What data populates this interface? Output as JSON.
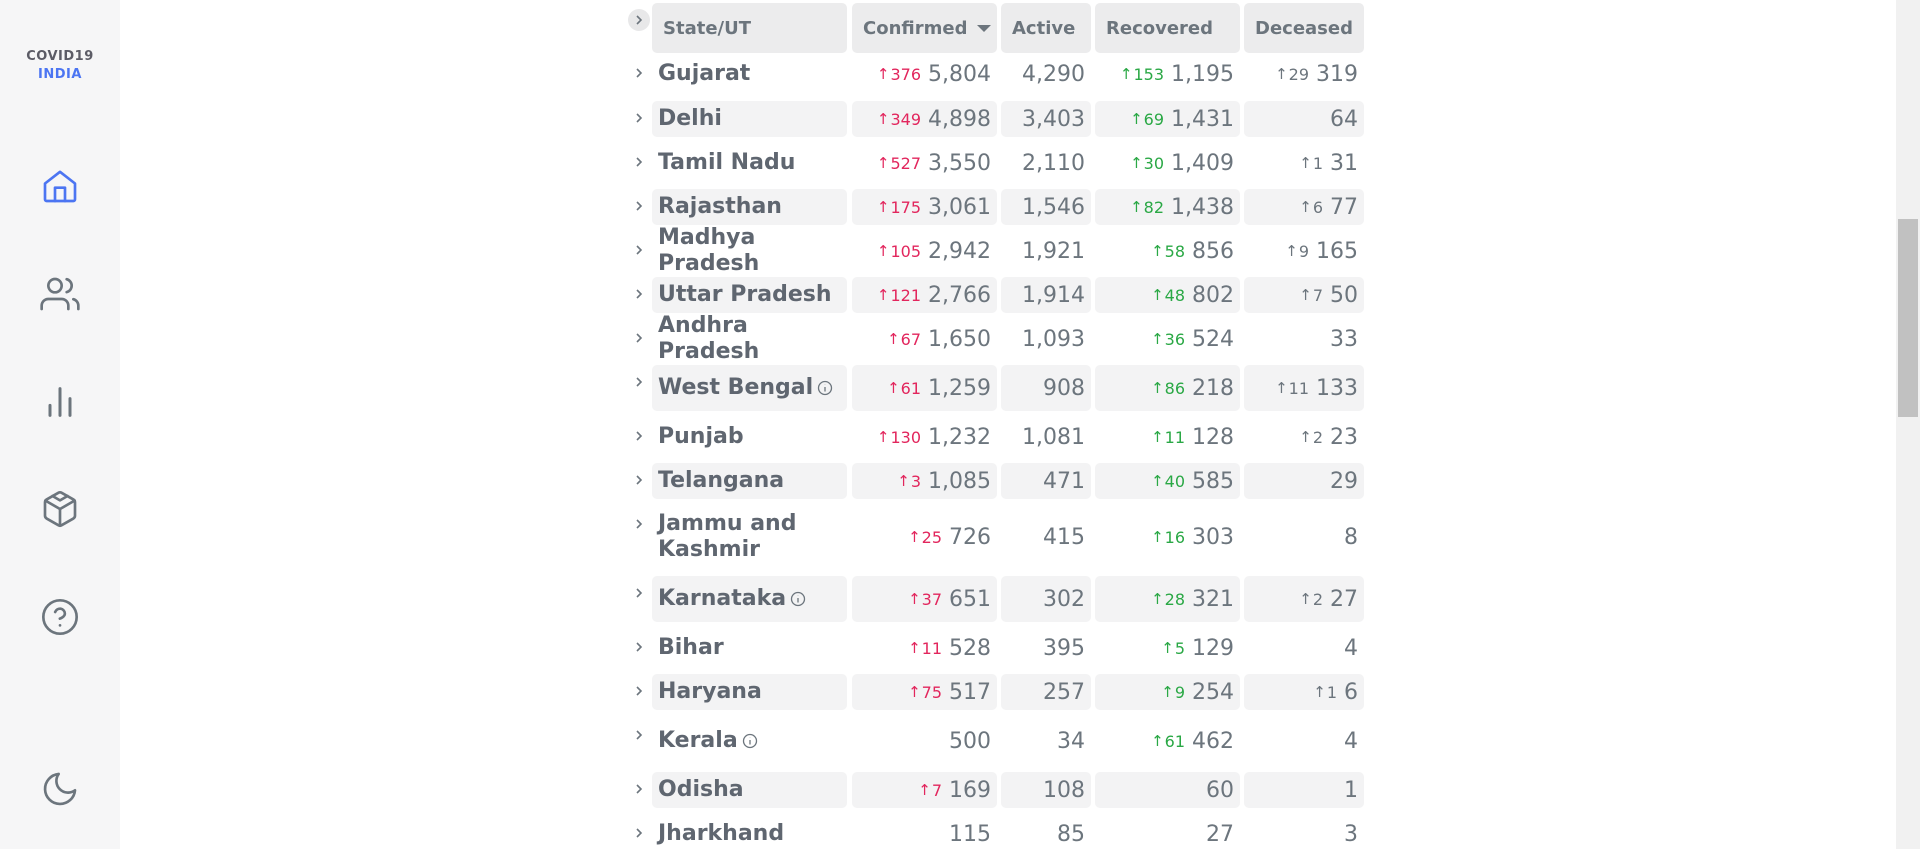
{
  "brand": {
    "line1": "COVID19",
    "line2": "INDIA"
  },
  "nav": [
    {
      "icon": "home-icon",
      "active": true
    },
    {
      "icon": "users-icon",
      "active": false
    },
    {
      "icon": "bar-chart-icon",
      "active": false
    },
    {
      "icon": "box-icon",
      "active": false
    },
    {
      "icon": "help-circle-icon",
      "active": false
    },
    {
      "icon": "moon-icon",
      "active": false
    }
  ],
  "colors": {
    "accent": "#4c75f2",
    "confirmed_delta": "#e2265d",
    "recovered_delta": "#2aa845",
    "deceased_delta": "#6c757d"
  },
  "table": {
    "headers": {
      "state": "State/UT",
      "confirmed": "Confirmed",
      "active": "Active",
      "recovered": "Recovered",
      "deceased": "Deceased"
    },
    "rows": [
      {
        "state": "Gujarat",
        "info": false,
        "confirmed_delta": "376",
        "confirmed": "5,804",
        "active": "4,290",
        "recovered_delta": "153",
        "recovered": "1,195",
        "deceased_delta": "29",
        "deceased": "319"
      },
      {
        "state": "Delhi",
        "info": false,
        "confirmed_delta": "349",
        "confirmed": "4,898",
        "active": "3,403",
        "recovered_delta": "69",
        "recovered": "1,431",
        "deceased_delta": "",
        "deceased": "64"
      },
      {
        "state": "Tamil Nadu",
        "info": false,
        "confirmed_delta": "527",
        "confirmed": "3,550",
        "active": "2,110",
        "recovered_delta": "30",
        "recovered": "1,409",
        "deceased_delta": "1",
        "deceased": "31"
      },
      {
        "state": "Rajasthan",
        "info": false,
        "confirmed_delta": "175",
        "confirmed": "3,061",
        "active": "1,546",
        "recovered_delta": "82",
        "recovered": "1,438",
        "deceased_delta": "6",
        "deceased": "77"
      },
      {
        "state": "Madhya Pradesh",
        "info": false,
        "confirmed_delta": "105",
        "confirmed": "2,942",
        "active": "1,921",
        "recovered_delta": "58",
        "recovered": "856",
        "deceased_delta": "9",
        "deceased": "165"
      },
      {
        "state": "Uttar Pradesh",
        "info": false,
        "confirmed_delta": "121",
        "confirmed": "2,766",
        "active": "1,914",
        "recovered_delta": "48",
        "recovered": "802",
        "deceased_delta": "7",
        "deceased": "50"
      },
      {
        "state": "Andhra Pradesh",
        "info": false,
        "confirmed_delta": "67",
        "confirmed": "1,650",
        "active": "1,093",
        "recovered_delta": "36",
        "recovered": "524",
        "deceased_delta": "",
        "deceased": "33"
      },
      {
        "state": "West Bengal",
        "info": true,
        "confirmed_delta": "61",
        "confirmed": "1,259",
        "active": "908",
        "recovered_delta": "86",
        "recovered": "218",
        "deceased_delta": "11",
        "deceased": "133"
      },
      {
        "state": "Punjab",
        "info": false,
        "confirmed_delta": "130",
        "confirmed": "1,232",
        "active": "1,081",
        "recovered_delta": "11",
        "recovered": "128",
        "deceased_delta": "2",
        "deceased": "23"
      },
      {
        "state": "Telangana",
        "info": false,
        "confirmed_delta": "3",
        "confirmed": "1,085",
        "active": "471",
        "recovered_delta": "40",
        "recovered": "585",
        "deceased_delta": "",
        "deceased": "29"
      },
      {
        "state": "Jammu and Kashmir",
        "info": false,
        "confirmed_delta": "25",
        "confirmed": "726",
        "active": "415",
        "recovered_delta": "16",
        "recovered": "303",
        "deceased_delta": "",
        "deceased": "8"
      },
      {
        "state": "Karnataka",
        "info": true,
        "confirmed_delta": "37",
        "confirmed": "651",
        "active": "302",
        "recovered_delta": "28",
        "recovered": "321",
        "deceased_delta": "2",
        "deceased": "27"
      },
      {
        "state": "Bihar",
        "info": false,
        "confirmed_delta": "11",
        "confirmed": "528",
        "active": "395",
        "recovered_delta": "5",
        "recovered": "129",
        "deceased_delta": "",
        "deceased": "4"
      },
      {
        "state": "Haryana",
        "info": false,
        "confirmed_delta": "75",
        "confirmed": "517",
        "active": "257",
        "recovered_delta": "9",
        "recovered": "254",
        "deceased_delta": "1",
        "deceased": "6"
      },
      {
        "state": "Kerala",
        "info": true,
        "confirmed_delta": "",
        "confirmed": "500",
        "active": "34",
        "recovered_delta": "61",
        "recovered": "462",
        "deceased_delta": "",
        "deceased": "4"
      },
      {
        "state": "Odisha",
        "info": false,
        "confirmed_delta": "7",
        "confirmed": "169",
        "active": "108",
        "recovered_delta": "",
        "recovered": "60",
        "deceased_delta": "",
        "deceased": "1"
      },
      {
        "state": "Jharkhand",
        "info": false,
        "confirmed_delta": "",
        "confirmed": "115",
        "active": "85",
        "recovered_delta": "",
        "recovered": "27",
        "deceased_delta": "",
        "deceased": "3"
      }
    ]
  }
}
